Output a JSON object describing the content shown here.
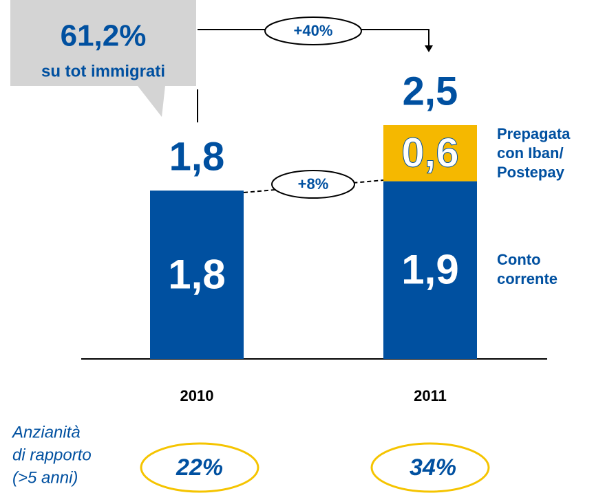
{
  "chart_data": {
    "type": "stacked-bar",
    "categories": [
      "2010",
      "2011"
    ],
    "series": [
      {
        "name": "Conto corrente",
        "color": "#0050a0",
        "values": [
          1.8,
          1.9
        ],
        "value_labels": [
          "1,8",
          "1,9"
        ]
      },
      {
        "name": "Prepagata con Iban/ Postepay",
        "color": "#f5b800",
        "values": [
          null,
          0.6
        ],
        "value_labels": [
          null,
          "0,6"
        ]
      }
    ],
    "total_labels": [
      "1,8",
      "2,5"
    ],
    "callout": {
      "value": "61,2%",
      "text": "su tot immigrati"
    },
    "growth_total": "+40%",
    "growth_conto": "+8%",
    "note_lines": [
      "Anzianità",
      "di rapporto",
      "(>5 anni)"
    ],
    "note_values": [
      "22%",
      "34%"
    ]
  }
}
